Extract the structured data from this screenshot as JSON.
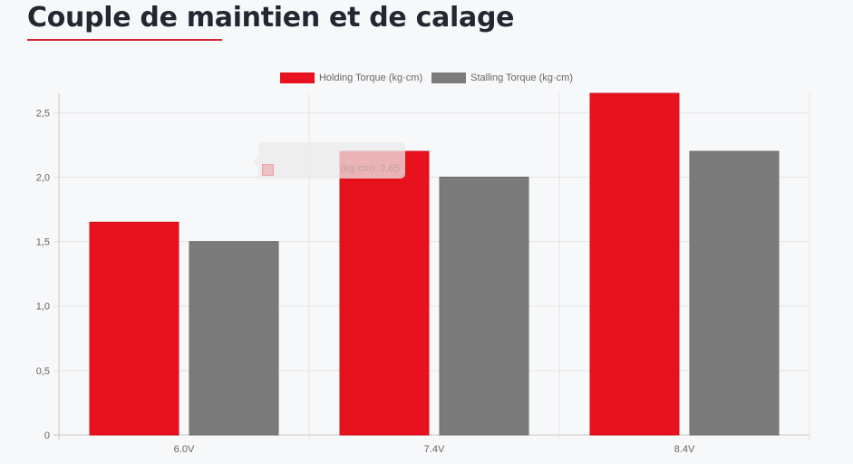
{
  "page": {
    "title": "Couple de maintien et de calage"
  },
  "tooltip": {
    "text": "(kg·cm): 2,65",
    "color": "#e8121e"
  },
  "chart_data": {
    "type": "bar",
    "categories": [
      "6.0V",
      "7.4V",
      "8.4V"
    ],
    "series": [
      {
        "name": "Holding Torque (kg·cm)",
        "values": [
          1.65,
          2.2,
          2.65
        ],
        "color": "#e8121e"
      },
      {
        "name": "Stalling Torque (kg·cm)",
        "values": [
          1.5,
          2.0,
          2.2
        ],
        "color": "#7b7b7b"
      }
    ],
    "yticks": [
      0,
      0.5,
      1.0,
      1.5,
      2.0,
      2.5
    ],
    "ytick_labels": [
      "0",
      "0,5",
      "1,0",
      "1,5",
      "2,0",
      "2,5"
    ],
    "ylim": [
      0,
      2.65
    ],
    "grid": true,
    "legend_position": "top-center"
  }
}
